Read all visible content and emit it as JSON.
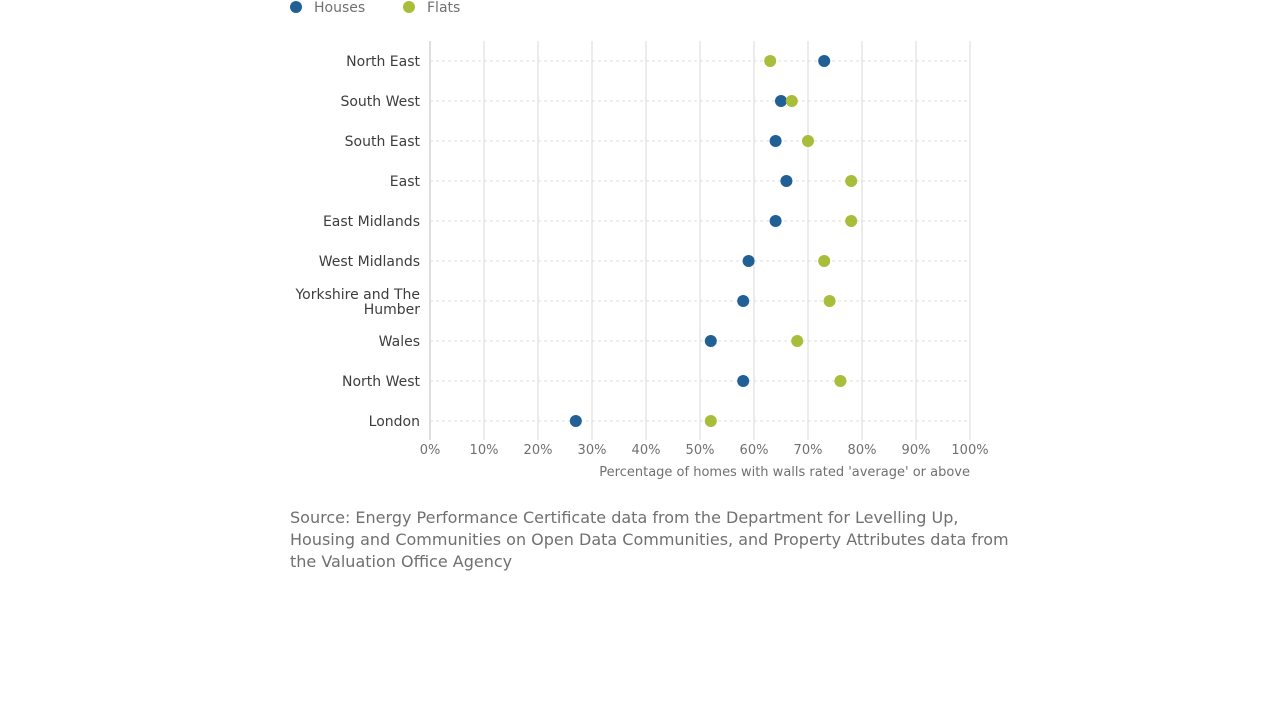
{
  "colors": {
    "houses": "#206095",
    "flats": "#a8bd3a",
    "grid": "#d9d9d9",
    "text": "#3d3d3d",
    "muted": "#707070"
  },
  "legend": [
    {
      "name": "Houses",
      "color": "#206095"
    },
    {
      "name": "Flats",
      "color": "#a8bd3a"
    }
  ],
  "chart_data": {
    "type": "scatter",
    "subtype": "dot-plot",
    "title": "",
    "categories": [
      "North East",
      "South West",
      "South East",
      "East",
      "East Midlands",
      "West Midlands",
      "Yorkshire and The Humber",
      "Wales",
      "North West",
      "London"
    ],
    "series": [
      {
        "name": "Houses",
        "color": "#206095",
        "values": [
          73,
          65,
          64,
          66,
          64,
          59,
          58,
          52,
          58,
          27
        ]
      },
      {
        "name": "Flats",
        "color": "#a8bd3a",
        "values": [
          63,
          67,
          70,
          78,
          78,
          73,
          74,
          68,
          76,
          52
        ]
      }
    ],
    "xlabel": "Percentage of homes with walls rated 'average' or above",
    "ylabel": "",
    "xlim": [
      0,
      100
    ],
    "xticks": [
      "0%",
      "10%",
      "20%",
      "30%",
      "40%",
      "50%",
      "60%",
      "70%",
      "80%",
      "90%",
      "100%"
    ],
    "legend_position": "top-left",
    "grid": true
  },
  "source": "Source: Energy Performance Certificate data from the Department for Levelling Up, Housing and Communities on Open Data Communities, and Property Attributes data from the Valuation Office Agency"
}
